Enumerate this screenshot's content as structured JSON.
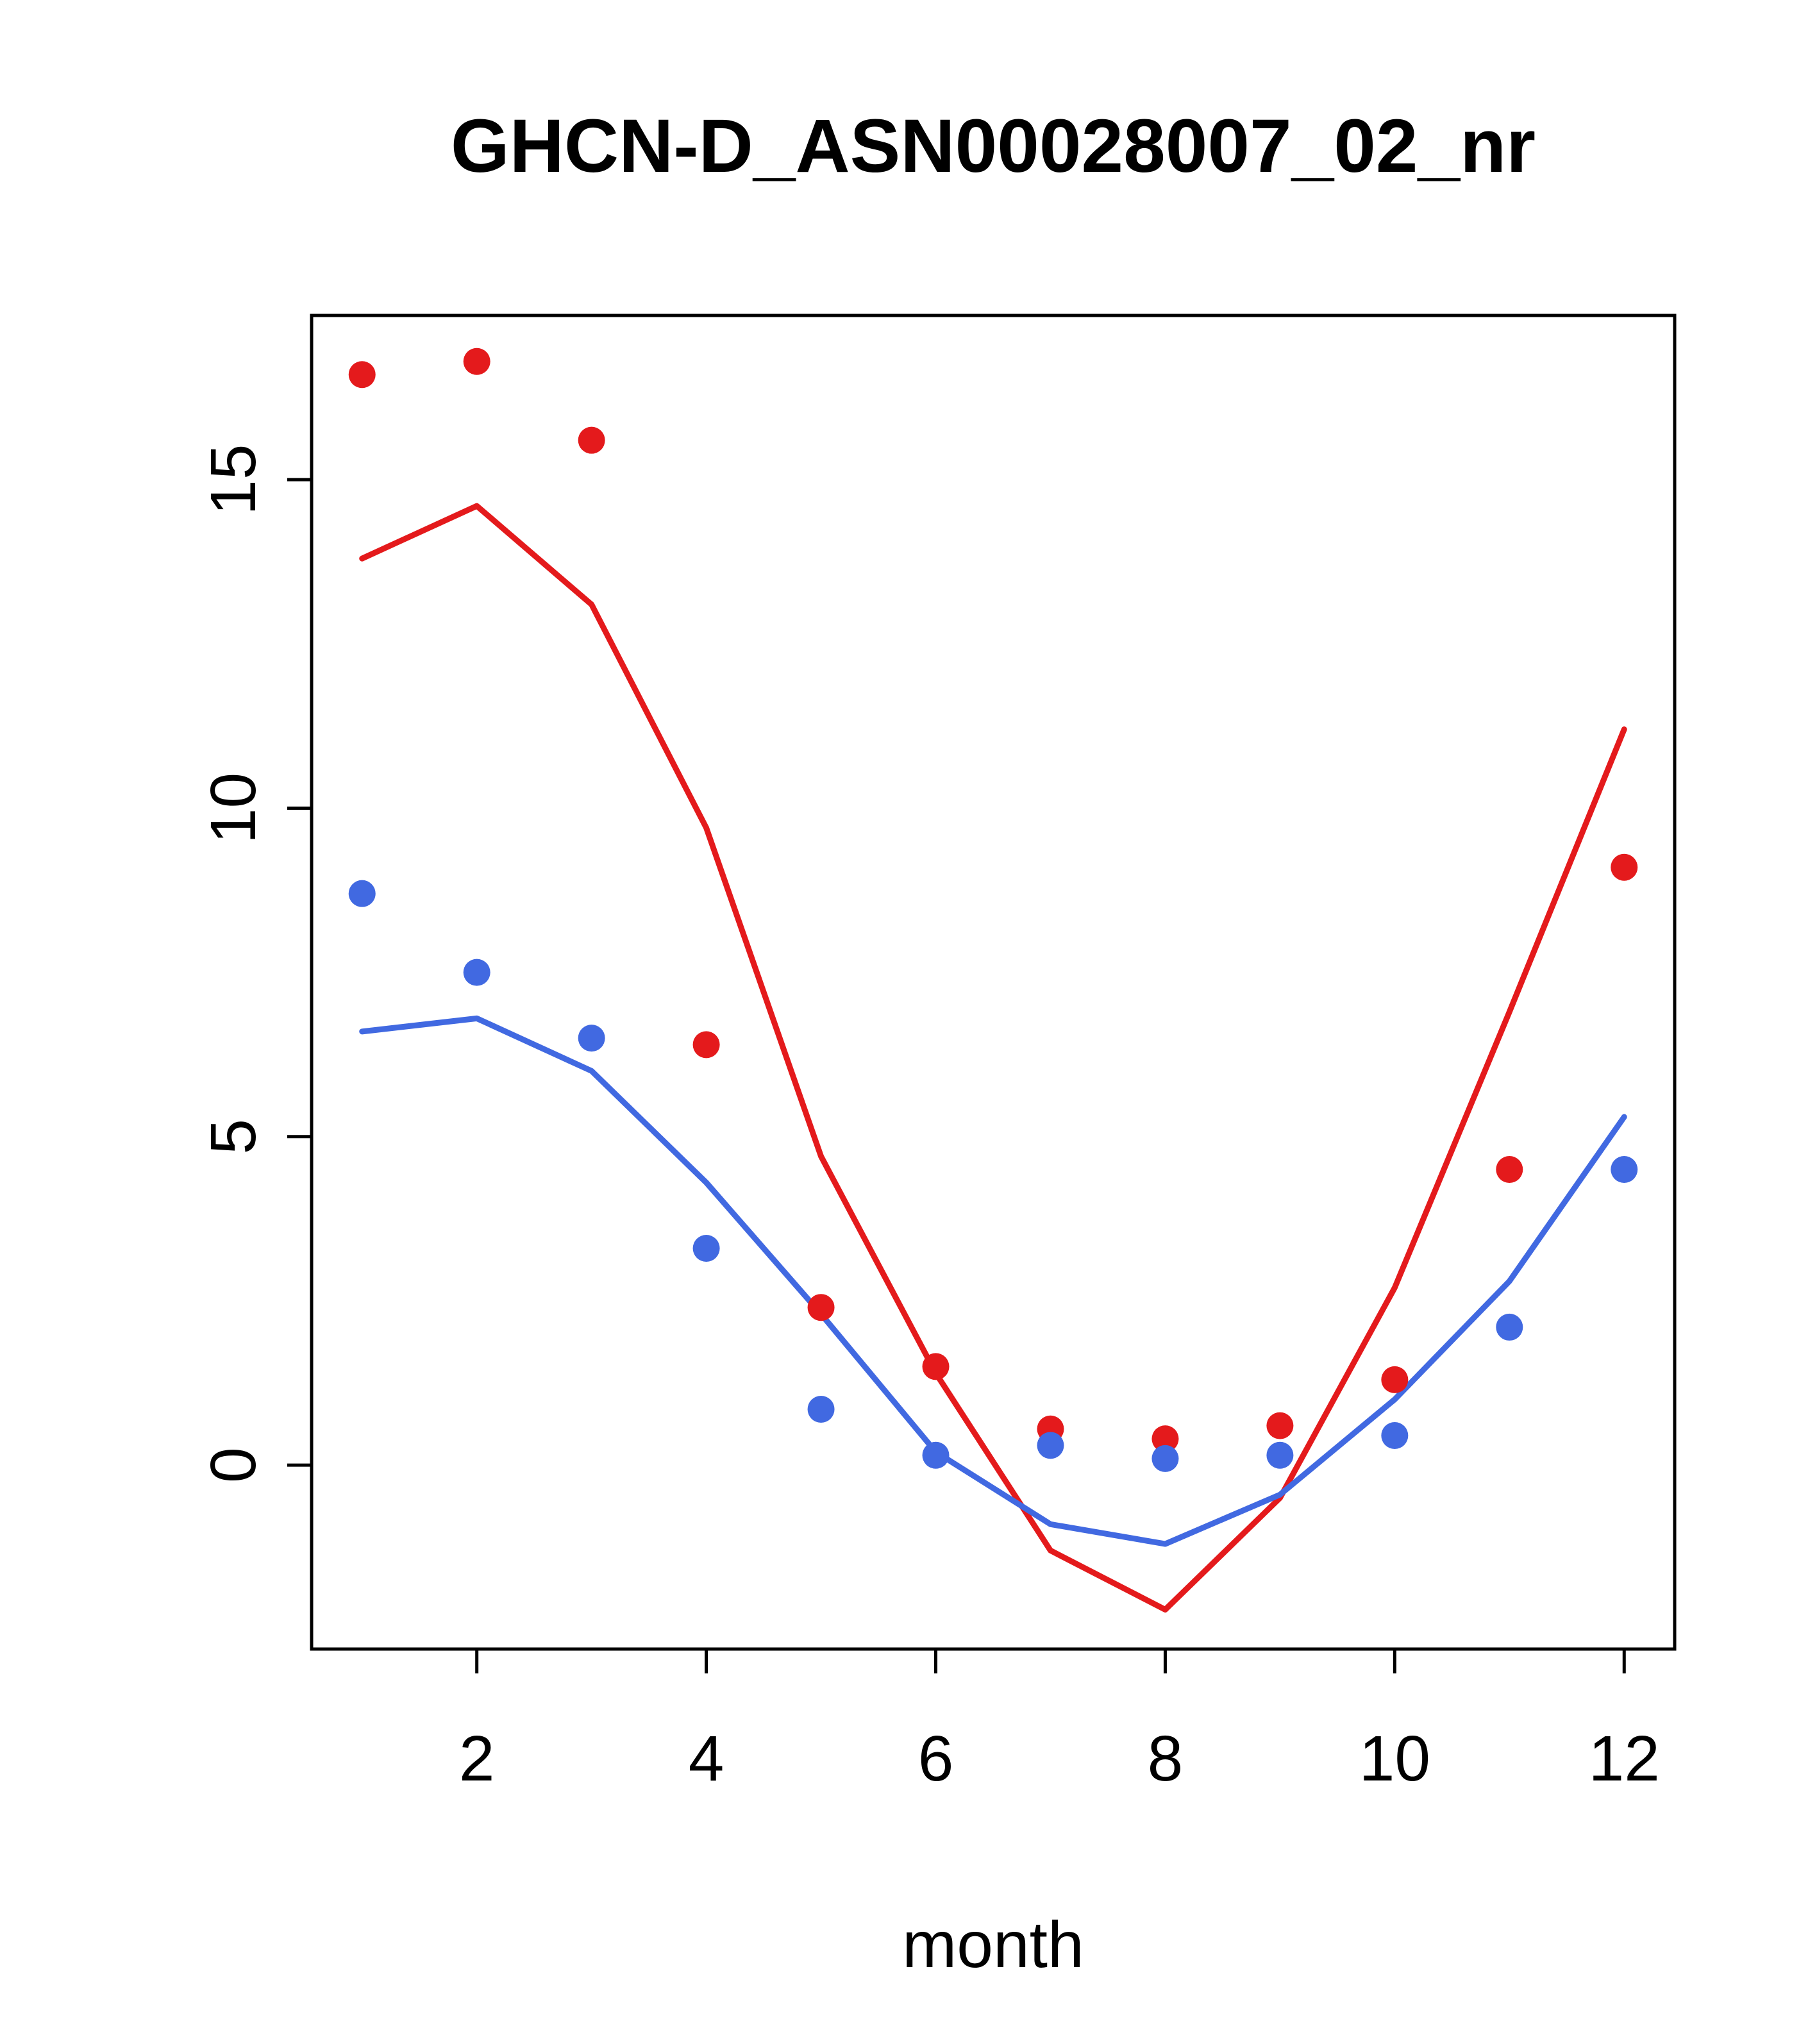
{
  "title": "GHCN-D_ASN00028007_02_nr",
  "chart_data": {
    "type": "line",
    "title": "GHCN-D_ASN00028007_02_nr",
    "xlabel": "month",
    "ylabel": "",
    "x": [
      1,
      2,
      3,
      4,
      5,
      6,
      7,
      8,
      9,
      10,
      11,
      12
    ],
    "xticks": [
      2,
      4,
      6,
      8,
      10,
      12
    ],
    "yticks": [
      0,
      5,
      10,
      15
    ],
    "xlim": [
      0.56,
      12.44
    ],
    "ylim": [
      -2.8,
      17.5
    ],
    "grid": false,
    "legend": "none",
    "axis_color": "#000000",
    "series": [
      {
        "name": "red-line",
        "type": "line",
        "color": "#e41a1c",
        "values": [
          13.8,
          14.6,
          13.1,
          9.7,
          4.7,
          1.4,
          -1.3,
          -2.2,
          -0.5,
          2.7,
          6.9,
          11.2
        ]
      },
      {
        "name": "blue-line",
        "type": "line",
        "color": "#4169e1",
        "values": [
          6.6,
          6.8,
          6.0,
          4.3,
          2.3,
          0.2,
          -0.9,
          -1.2,
          -0.45,
          1.0,
          2.8,
          5.3
        ]
      },
      {
        "name": "red-points",
        "type": "scatter",
        "color": "#e41a1c",
        "values": [
          16.6,
          16.8,
          15.6,
          6.4,
          2.4,
          1.5,
          0.55,
          0.4,
          0.6,
          1.3,
          4.5,
          9.1
        ]
      },
      {
        "name": "blue-points",
        "type": "scatter",
        "color": "#4169e1",
        "values": [
          8.7,
          7.5,
          6.5,
          3.3,
          0.85,
          0.15,
          0.3,
          0.1,
          0.15,
          0.45,
          2.1,
          4.5
        ]
      }
    ]
  }
}
